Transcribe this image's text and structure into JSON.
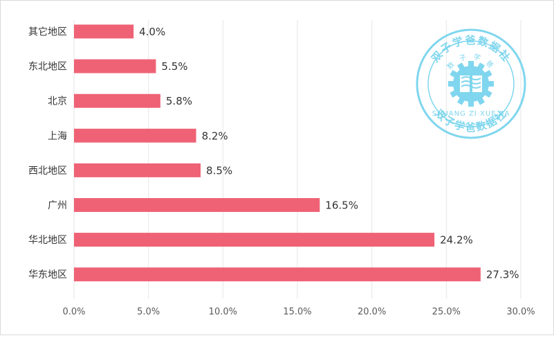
{
  "chart_data": {
    "type": "bar",
    "orientation": "horizontal",
    "categories": [
      "其它地区",
      "东北地区",
      "北京",
      "上海",
      "西北地区",
      "广州",
      "华北地区",
      "华东地区"
    ],
    "values": [
      4.0,
      5.5,
      5.8,
      8.2,
      8.5,
      16.5,
      24.2,
      27.3
    ],
    "value_labels": [
      "4.0%",
      "5.5%",
      "5.8%",
      "8.2%",
      "8.5%",
      "16.5%",
      "24.2%",
      "27.3%"
    ],
    "x_ticks": [
      "0.0%",
      "5.0%",
      "10.0%",
      "15.0%",
      "20.0%",
      "25.0%",
      "30.0%"
    ],
    "xlim": [
      0,
      30
    ],
    "grid": "vertical",
    "legend": "none",
    "bar_color": "#ef6275",
    "grid_color": "#e6e6e6",
    "title": "",
    "xlabel": "",
    "ylabel": ""
  },
  "watermark": {
    "top_text": "双子学爸数据社",
    "inner_text": "数 子 学 爸",
    "latin_text": "SHUANG ZI XUE BA",
    "bottom_text": "双子学爸数据社",
    "color": "#7fd6ee"
  }
}
